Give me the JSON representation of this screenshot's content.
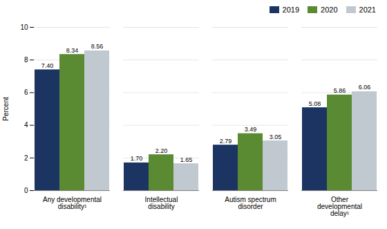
{
  "chart_data": {
    "type": "bar",
    "categories": [
      "Any developmental\ndisability¹",
      "Intellectual\ndisability",
      "Autism spectrum\ndisorder",
      "Other\ndevelopmental\ndelay¹"
    ],
    "series": [
      {
        "name": "2019",
        "color": "#1c3461",
        "values": [
          7.4,
          1.7,
          2.79,
          5.08
        ],
        "value_labels": [
          "7.40",
          "1.70",
          "2.79",
          "5.08"
        ]
      },
      {
        "name": "2020",
        "color": "#5a8a32",
        "values": [
          8.34,
          2.2,
          3.49,
          5.86
        ],
        "value_labels": [
          "8.34",
          "2.20",
          "3.49",
          "5.86"
        ]
      },
      {
        "name": "2021",
        "color": "#c0c8d0",
        "values": [
          8.56,
          1.65,
          3.05,
          6.06
        ],
        "value_labels": [
          "8.56",
          "1.65",
          "3.05",
          "6.06"
        ]
      }
    ],
    "ylabel": "Percent",
    "ylim": [
      0,
      10
    ],
    "yticks": [
      0,
      2,
      4,
      6,
      8,
      10
    ],
    "grid": true,
    "legend": "upper right",
    "data_labels": true
  }
}
